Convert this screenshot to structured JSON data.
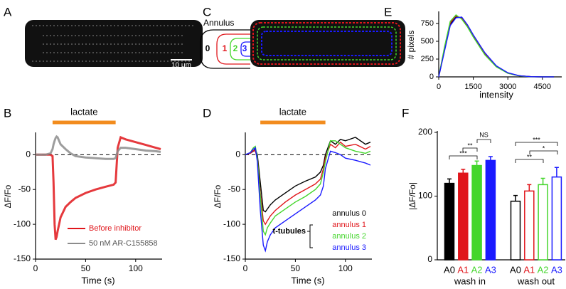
{
  "panel_letters": [
    "A",
    "B",
    "C",
    "D",
    "E",
    "F"
  ],
  "images": {
    "scale_bar": "10 μm",
    "annulus_title": "Annulus",
    "annulus_numbers": [
      "0",
      "1",
      "2",
      "3"
    ]
  },
  "chart_data": [
    {
      "type": "line",
      "panel": "E",
      "xlabel": "intensity",
      "ylabel": "# pixels",
      "x": [
        0,
        250,
        500,
        750,
        1000,
        1250,
        1500,
        2000,
        2500,
        3000,
        3500,
        4000,
        4500,
        5000
      ],
      "series": [
        {
          "color": "#000000",
          "values": [
            0,
            380,
            740,
            840,
            830,
            720,
            580,
            330,
            150,
            55,
            15,
            3,
            0,
            0
          ]
        },
        {
          "color": "#e0161b",
          "values": [
            0,
            400,
            760,
            860,
            820,
            710,
            570,
            320,
            145,
            52,
            14,
            3,
            0,
            0
          ]
        },
        {
          "color": "#44d62c",
          "values": [
            0,
            420,
            780,
            870,
            810,
            700,
            560,
            310,
            140,
            50,
            13,
            2,
            0,
            0
          ]
        },
        {
          "color": "#1a1aff",
          "values": [
            0,
            360,
            720,
            830,
            840,
            730,
            590,
            340,
            155,
            58,
            16,
            3,
            0,
            0
          ]
        }
      ],
      "xlim": [
        0,
        5000
      ],
      "xticks": [
        0,
        1500,
        3000,
        4500
      ],
      "ylim": [
        0,
        900
      ],
      "yticks": [
        0,
        250,
        500,
        750
      ]
    },
    {
      "type": "line",
      "panel": "B",
      "xlabel": "Time (s)",
      "ylabel": "ΔF/Fo",
      "annotation": "lactate",
      "stimulus_x": [
        17,
        80
      ],
      "reference_line": 0,
      "x": [
        0,
        5,
        10,
        15,
        17,
        18,
        19,
        20,
        21,
        22,
        25,
        30,
        35,
        40,
        50,
        60,
        70,
        78,
        80,
        82,
        85,
        90,
        100,
        110,
        120,
        125
      ],
      "series": [
        {
          "name": "Before inhibitor",
          "color": "#e0161b",
          "values": [
            0,
            0,
            0,
            0,
            -2,
            -40,
            -100,
            -122,
            -118,
            -110,
            -90,
            -75,
            -68,
            -62,
            -55,
            -50,
            -46,
            -43,
            -40,
            10,
            25,
            22,
            18,
            14,
            10,
            8
          ]
        },
        {
          "name": "50 nM AR-C155858",
          "color": "#8c8c8c",
          "values": [
            0,
            0,
            0,
            2,
            8,
            15,
            20,
            24,
            26,
            25,
            15,
            8,
            2,
            -2,
            -4,
            -5,
            -6,
            -6,
            -5,
            5,
            10,
            10,
            8,
            6,
            5,
            4
          ]
        }
      ],
      "xlim": [
        0,
        125
      ],
      "xticks": [
        0,
        50,
        100
      ],
      "ylim": [
        -150,
        30
      ],
      "yticks": [
        0,
        -50,
        -100,
        -150
      ]
    },
    {
      "type": "line",
      "panel": "D",
      "xlabel": "Time (s)",
      "ylabel": "ΔF/Fo",
      "annotation": "lactate",
      "stimulus_x": [
        15,
        80
      ],
      "reference_line": 0,
      "group_label": "t-tubules",
      "x": [
        0,
        5,
        8,
        10,
        12,
        15,
        18,
        20,
        22,
        25,
        30,
        40,
        50,
        60,
        70,
        75,
        78,
        80,
        85,
        90,
        95,
        100,
        110,
        120,
        125
      ],
      "series": [
        {
          "name": "annulus 0",
          "color": "#000000",
          "values": [
            0,
            2,
            5,
            8,
            0,
            -40,
            -80,
            -82,
            -78,
            -72,
            -65,
            -55,
            -45,
            -38,
            -32,
            -25,
            -15,
            0,
            20,
            15,
            22,
            20,
            25,
            15,
            18
          ]
        },
        {
          "name": "annulus 1",
          "color": "#e0161b",
          "values": [
            0,
            2,
            6,
            5,
            -5,
            -55,
            -95,
            -100,
            -95,
            -88,
            -80,
            -68,
            -58,
            -50,
            -42,
            -35,
            -20,
            -5,
            15,
            10,
            18,
            12,
            15,
            8,
            12
          ]
        },
        {
          "name": "annulus 2",
          "color": "#44d62c",
          "values": [
            0,
            3,
            10,
            12,
            -5,
            -60,
            -110,
            -115,
            -105,
            -98,
            -88,
            -78,
            -68,
            -60,
            -50,
            -42,
            -25,
            -10,
            20,
            20,
            15,
            10,
            5,
            2,
            5
          ]
        },
        {
          "name": "annulus 3",
          "color": "#1a1aff",
          "values": [
            0,
            3,
            8,
            10,
            -10,
            -80,
            -130,
            -138,
            -125,
            -115,
            -105,
            -95,
            -85,
            -75,
            -65,
            -58,
            -45,
            -20,
            5,
            3,
            0,
            -5,
            -8,
            -12,
            -15
          ]
        }
      ],
      "xlim": [
        0,
        125
      ],
      "xticks": [
        0,
        50,
        100
      ],
      "ylim": [
        -150,
        30
      ],
      "yticks": [
        0,
        -50,
        -100,
        -150
      ]
    },
    {
      "type": "bar",
      "panel": "F",
      "ylabel": "|ΔF/Fo|",
      "colors": [
        "#000000",
        "#e0161b",
        "#44d62c",
        "#1a1aff"
      ],
      "groups": [
        {
          "name": "wash in",
          "filled": true,
          "categories": [
            "A0",
            "A1",
            "A2",
            "A3"
          ],
          "values": [
            120,
            136,
            148,
            156
          ],
          "errors": [
            7,
            6,
            7,
            6
          ]
        },
        {
          "name": "wash out",
          "filled": false,
          "categories": [
            "A0",
            "A1",
            "A2",
            "A3"
          ],
          "values": [
            92,
            108,
            118,
            130
          ],
          "errors": [
            9,
            10,
            10,
            15
          ]
        }
      ],
      "significance": [
        "***",
        "**",
        "NS",
        "***",
        "*",
        "**"
      ],
      "ylim": [
        0,
        200
      ],
      "yticks": [
        0,
        100,
        200
      ]
    }
  ]
}
